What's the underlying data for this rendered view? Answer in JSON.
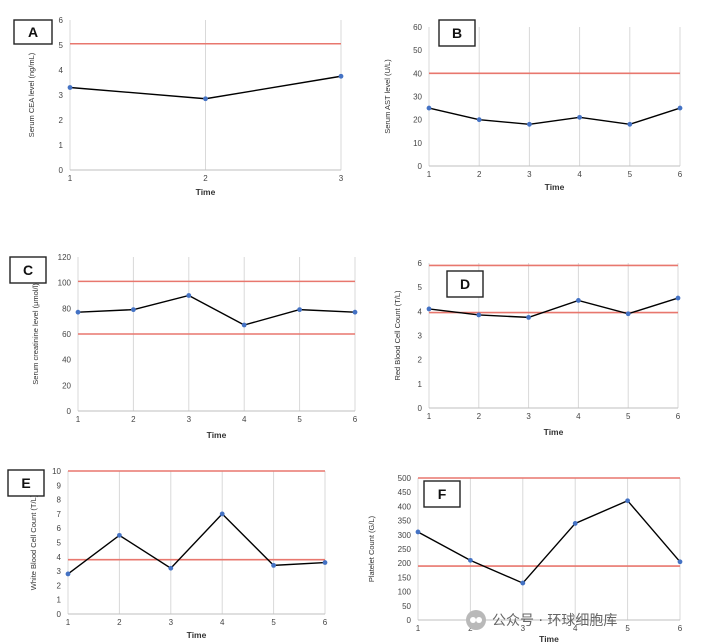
{
  "chart_data": [
    {
      "panel": "A",
      "type": "line",
      "ylabel": "Serum CEA level (ng/mL)",
      "xlabel": "Time",
      "x": [
        1,
        2,
        3
      ],
      "values": [
        3.3,
        2.85,
        3.75
      ],
      "ylim": [
        0,
        6
      ],
      "yticks": [
        "0",
        "1",
        "2",
        "3",
        "4",
        "5",
        "6"
      ],
      "xticks": [
        "1",
        "2",
        "3"
      ],
      "reference_lines": [
        5.05
      ],
      "grid": "vertical",
      "colors": {
        "line": "#000000",
        "marker": "#4472c4",
        "reference": "#e8776e",
        "grid": "#d9d9d9"
      }
    },
    {
      "panel": "B",
      "type": "line",
      "ylabel": "Serum AST level (U/L)",
      "xlabel": "Time",
      "x": [
        1,
        2,
        3,
        4,
        5,
        6
      ],
      "values": [
        25,
        20,
        18,
        21,
        18,
        25
      ],
      "ylim": [
        0,
        60
      ],
      "yticks": [
        "0",
        "10",
        "20",
        "30",
        "40",
        "50",
        "60"
      ],
      "xticks": [
        "1",
        "2",
        "3",
        "4",
        "5",
        "6"
      ],
      "reference_lines": [
        40
      ],
      "grid": "vertical",
      "colors": {
        "line": "#000000",
        "marker": "#4472c4",
        "reference": "#e8776e",
        "grid": "#d9d9d9"
      }
    },
    {
      "panel": "C",
      "type": "line",
      "ylabel": "Serum creatinine level (μmol/l)",
      "xlabel": "Time",
      "x": [
        1,
        2,
        3,
        4,
        5,
        6
      ],
      "values": [
        77,
        79,
        90,
        67,
        79,
        77
      ],
      "ylim": [
        0,
        120
      ],
      "yticks": [
        "0",
        "20",
        "40",
        "60",
        "80",
        "100",
        "120"
      ],
      "xticks": [
        "1",
        "2",
        "3",
        "4",
        "5",
        "6"
      ],
      "reference_lines": [
        101,
        60
      ],
      "grid": "vertical",
      "colors": {
        "line": "#000000",
        "marker": "#4472c4",
        "reference": "#e8776e",
        "grid": "#d9d9d9"
      }
    },
    {
      "panel": "D",
      "type": "line",
      "ylabel": "Red Blood Cell Count (T/L)",
      "xlabel": "Time",
      "x": [
        1,
        2,
        3,
        4,
        5,
        6
      ],
      "values": [
        4.1,
        3.85,
        3.75,
        4.45,
        3.9,
        4.55
      ],
      "ylim": [
        0,
        6
      ],
      "yticks": [
        "0",
        "1",
        "2",
        "3",
        "4",
        "5",
        "6"
      ],
      "xticks": [
        "1",
        "2",
        "3",
        "4",
        "5",
        "6"
      ],
      "reference_lines": [
        5.9,
        3.95
      ],
      "grid": "vertical",
      "colors": {
        "line": "#000000",
        "marker": "#4472c4",
        "reference": "#e8776e",
        "grid": "#d9d9d9"
      }
    },
    {
      "panel": "E",
      "type": "line",
      "ylabel": "White Blood Cell Count (T/L)",
      "xlabel": "Time",
      "x": [
        1,
        2,
        3,
        4,
        5,
        6
      ],
      "values": [
        2.8,
        5.5,
        3.2,
        7.0,
        3.4,
        3.6
      ],
      "ylim": [
        0,
        10
      ],
      "yticks": [
        "0",
        "1",
        "2",
        "3",
        "4",
        "5",
        "6",
        "7",
        "8",
        "9",
        "10"
      ],
      "xticks": [
        "1",
        "2",
        "3",
        "4",
        "5",
        "6"
      ],
      "reference_lines": [
        10,
        3.8
      ],
      "grid": "vertical",
      "colors": {
        "line": "#000000",
        "marker": "#4472c4",
        "reference": "#e8776e",
        "grid": "#d9d9d9"
      }
    },
    {
      "panel": "F",
      "type": "line",
      "ylabel": "Platelet Count (G/L)",
      "xlabel": "Time",
      "x": [
        1,
        2,
        3,
        4,
        5,
        6
      ],
      "values": [
        310,
        210,
        130,
        340,
        420,
        205
      ],
      "ylim": [
        0,
        500
      ],
      "yticks": [
        "0",
        "50",
        "100",
        "150",
        "200",
        "250",
        "300",
        "350",
        "400",
        "450",
        "500"
      ],
      "xticks": [
        "1",
        "2",
        "3",
        "4",
        "5",
        "6"
      ],
      "reference_lines": [
        500,
        190
      ],
      "grid": "vertical",
      "colors": {
        "line": "#000000",
        "marker": "#4472c4",
        "reference": "#e8776e",
        "grid": "#d9d9d9"
      }
    }
  ],
  "watermark": {
    "text": "公众号 · 环球细胞库"
  }
}
